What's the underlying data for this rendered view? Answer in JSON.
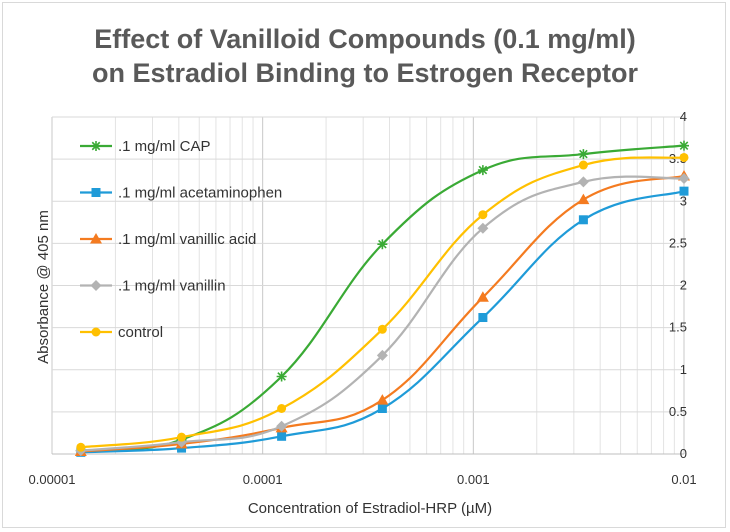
{
  "chart_data": {
    "type": "line",
    "title_line1": "Effect of Vanilloid Compounds (0.1 mg/ml)",
    "title_line2": "on Estradiol Binding to Estrogen Receptor",
    "xlabel": "Concentration of Estradiol-HRP (µM)",
    "ylabel": "Absorbance  @ 405 nm",
    "x_scale": "log",
    "xlim": [
      1e-05,
      0.01
    ],
    "ylim": [
      0,
      4
    ],
    "x_tick_labels": [
      "0.00001",
      "0.0001",
      "0.001",
      "0.01"
    ],
    "y_tick_labels": [
      "0",
      "0.5",
      "1",
      "1.5",
      "2",
      "2.5",
      "3",
      "3.5",
      "4"
    ],
    "grid": "minor log gridlines on x, major on y",
    "legend_position": "upper-left inside plot",
    "x": [
      1.37e-05,
      4.12e-05,
      0.000123,
      0.00037,
      0.00111,
      0.00333,
      0.01
    ],
    "series": [
      {
        "name": ".1 mg/ml CAP",
        "color": "#3aaa35",
        "marker": "star",
        "values": [
          0.04,
          0.17,
          0.92,
          2.49,
          3.37,
          3.56,
          3.66
        ]
      },
      {
        "name": ".1 mg/ml acetaminophen",
        "color": "#1f9bd8",
        "marker": "square",
        "values": [
          0.02,
          0.07,
          0.21,
          0.54,
          1.62,
          2.78,
          3.12
        ]
      },
      {
        "name": ".1 mg/ml vanillic acid",
        "color": "#f47b20",
        "marker": "triangle",
        "values": [
          0.03,
          0.12,
          0.31,
          0.64,
          1.86,
          3.02,
          3.3
        ]
      },
      {
        "name": ".1 mg/ml vanillin",
        "color": "#b3b3b3",
        "marker": "diamond",
        "values": [
          0.04,
          0.14,
          0.33,
          1.17,
          2.68,
          3.23,
          3.27
        ]
      },
      {
        "name": "control",
        "color": "#ffc000",
        "marker": "circle",
        "values": [
          0.08,
          0.2,
          0.54,
          1.48,
          2.84,
          3.43,
          3.52
        ]
      }
    ]
  }
}
